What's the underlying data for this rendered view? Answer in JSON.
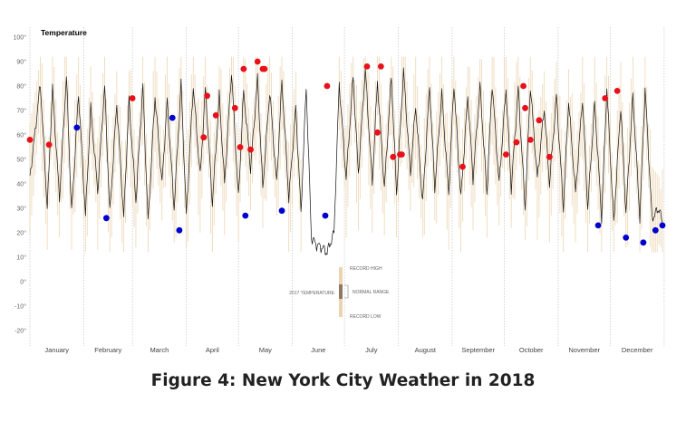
{
  "figure": {
    "caption": "Figure 4: New York City Weather in 2018"
  },
  "chart_data": {
    "type": "line",
    "title": "Temperature",
    "xlabel": "",
    "ylabel": "",
    "ylim": [
      -25,
      105
    ],
    "y_ticks": [
      -20,
      -10,
      0,
      10,
      20,
      30,
      40,
      50,
      60,
      70,
      80,
      90,
      100
    ],
    "y_tick_labels": [
      "-20°",
      "-10°",
      "0°",
      "10°",
      "20°",
      "30°",
      "40°",
      "50°",
      "60°",
      "70°",
      "80°",
      "90°",
      "100°"
    ],
    "months": [
      "January",
      "February",
      "March",
      "April",
      "May",
      "June",
      "July",
      "August",
      "September",
      "October",
      "November",
      "December"
    ],
    "grid": {
      "vertical_month_lines": true,
      "style": "dotted"
    },
    "colors": {
      "temperature_line": "#111111",
      "record_range": "#ecd4b0",
      "normal_range": "#8a7a66",
      "record_high_marker": "#e8111b",
      "record_low_marker": "#0000cc",
      "month_grid": "#bbbbbb"
    },
    "series": [
      {
        "name": "",
        "note": "daily temperature, approx. peaks and troughs",
        "day": [
          1,
          3,
          7,
          11,
          14,
          18,
          22,
          25,
          29,
          33,
          36,
          40,
          44,
          47,
          51,
          55,
          58,
          62,
          66,
          69,
          73,
          77,
          80,
          84,
          88,
          91,
          95,
          99,
          102,
          106,
          110,
          113,
          117,
          121,
          124,
          128,
          132,
          135,
          139,
          143,
          146,
          150,
          154,
          157,
          160,
          163,
          166,
          169,
          172,
          176,
          179,
          183,
          187,
          190,
          194,
          198,
          201,
          205,
          209,
          212,
          216,
          220,
          223,
          227,
          231,
          234,
          238,
          242,
          245,
          249,
          253,
          256,
          260,
          264,
          267,
          271,
          275,
          278,
          282,
          286,
          289,
          293,
          297,
          300,
          304,
          308,
          311,
          315,
          319,
          322,
          326,
          330,
          333,
          337,
          341,
          344,
          348,
          352,
          355,
          359,
          363,
          365
        ],
        "value": [
          43,
          55,
          81,
          30,
          79,
          34,
          84,
          28,
          77,
          27,
          71,
          37,
          80,
          28,
          73,
          26,
          74,
          33,
          80,
          24,
          76,
          40,
          74,
          30,
          81,
          27,
          80,
          43,
          79,
          32,
          76,
          40,
          86,
          34,
          78,
          46,
          83,
          38,
          78,
          40,
          82,
          34,
          71,
          28,
          80,
          18,
          15,
          14,
          12,
          20,
          81,
          42,
          84,
          44,
          87,
          40,
          82,
          38,
          84,
          36,
          86,
          44,
          72,
          32,
          80,
          38,
          77,
          36,
          81,
          34,
          76,
          42,
          80,
          36,
          81,
          40,
          79,
          38,
          79,
          30,
          80,
          42,
          71,
          40,
          76,
          30,
          74,
          36,
          75,
          30,
          73,
          26,
          79,
          24,
          72,
          28,
          76,
          26,
          79,
          26,
          30,
          24
        ]
      }
    ],
    "record_highs": {
      "day": [
        1,
        12,
        60,
        101,
        103,
        108,
        119,
        122,
        124,
        128,
        132,
        135,
        136,
        172,
        195,
        201,
        203,
        210,
        214,
        215,
        250,
        275,
        281,
        285,
        286,
        289,
        294,
        300,
        332,
        339
      ],
      "value": [
        58,
        56,
        75,
        59,
        76,
        68,
        71,
        55,
        87,
        54,
        90,
        87,
        87,
        80,
        88,
        61,
        88,
        51,
        52,
        52,
        47,
        52,
        57,
        80,
        71,
        58,
        66,
        51,
        75,
        78
      ]
    },
    "record_lows": {
      "day": [
        28,
        45,
        83,
        87,
        125,
        146,
        171,
        328,
        344,
        354,
        361,
        365
      ],
      "value": [
        63,
        26,
        67,
        21,
        27,
        29,
        27,
        23,
        18,
        16,
        21,
        23
      ]
    },
    "legend": {
      "items": [
        "RECORD HIGH",
        "NORMAL RANGE",
        "2017 TEMPERATURE",
        "RECORD LOW"
      ]
    }
  }
}
